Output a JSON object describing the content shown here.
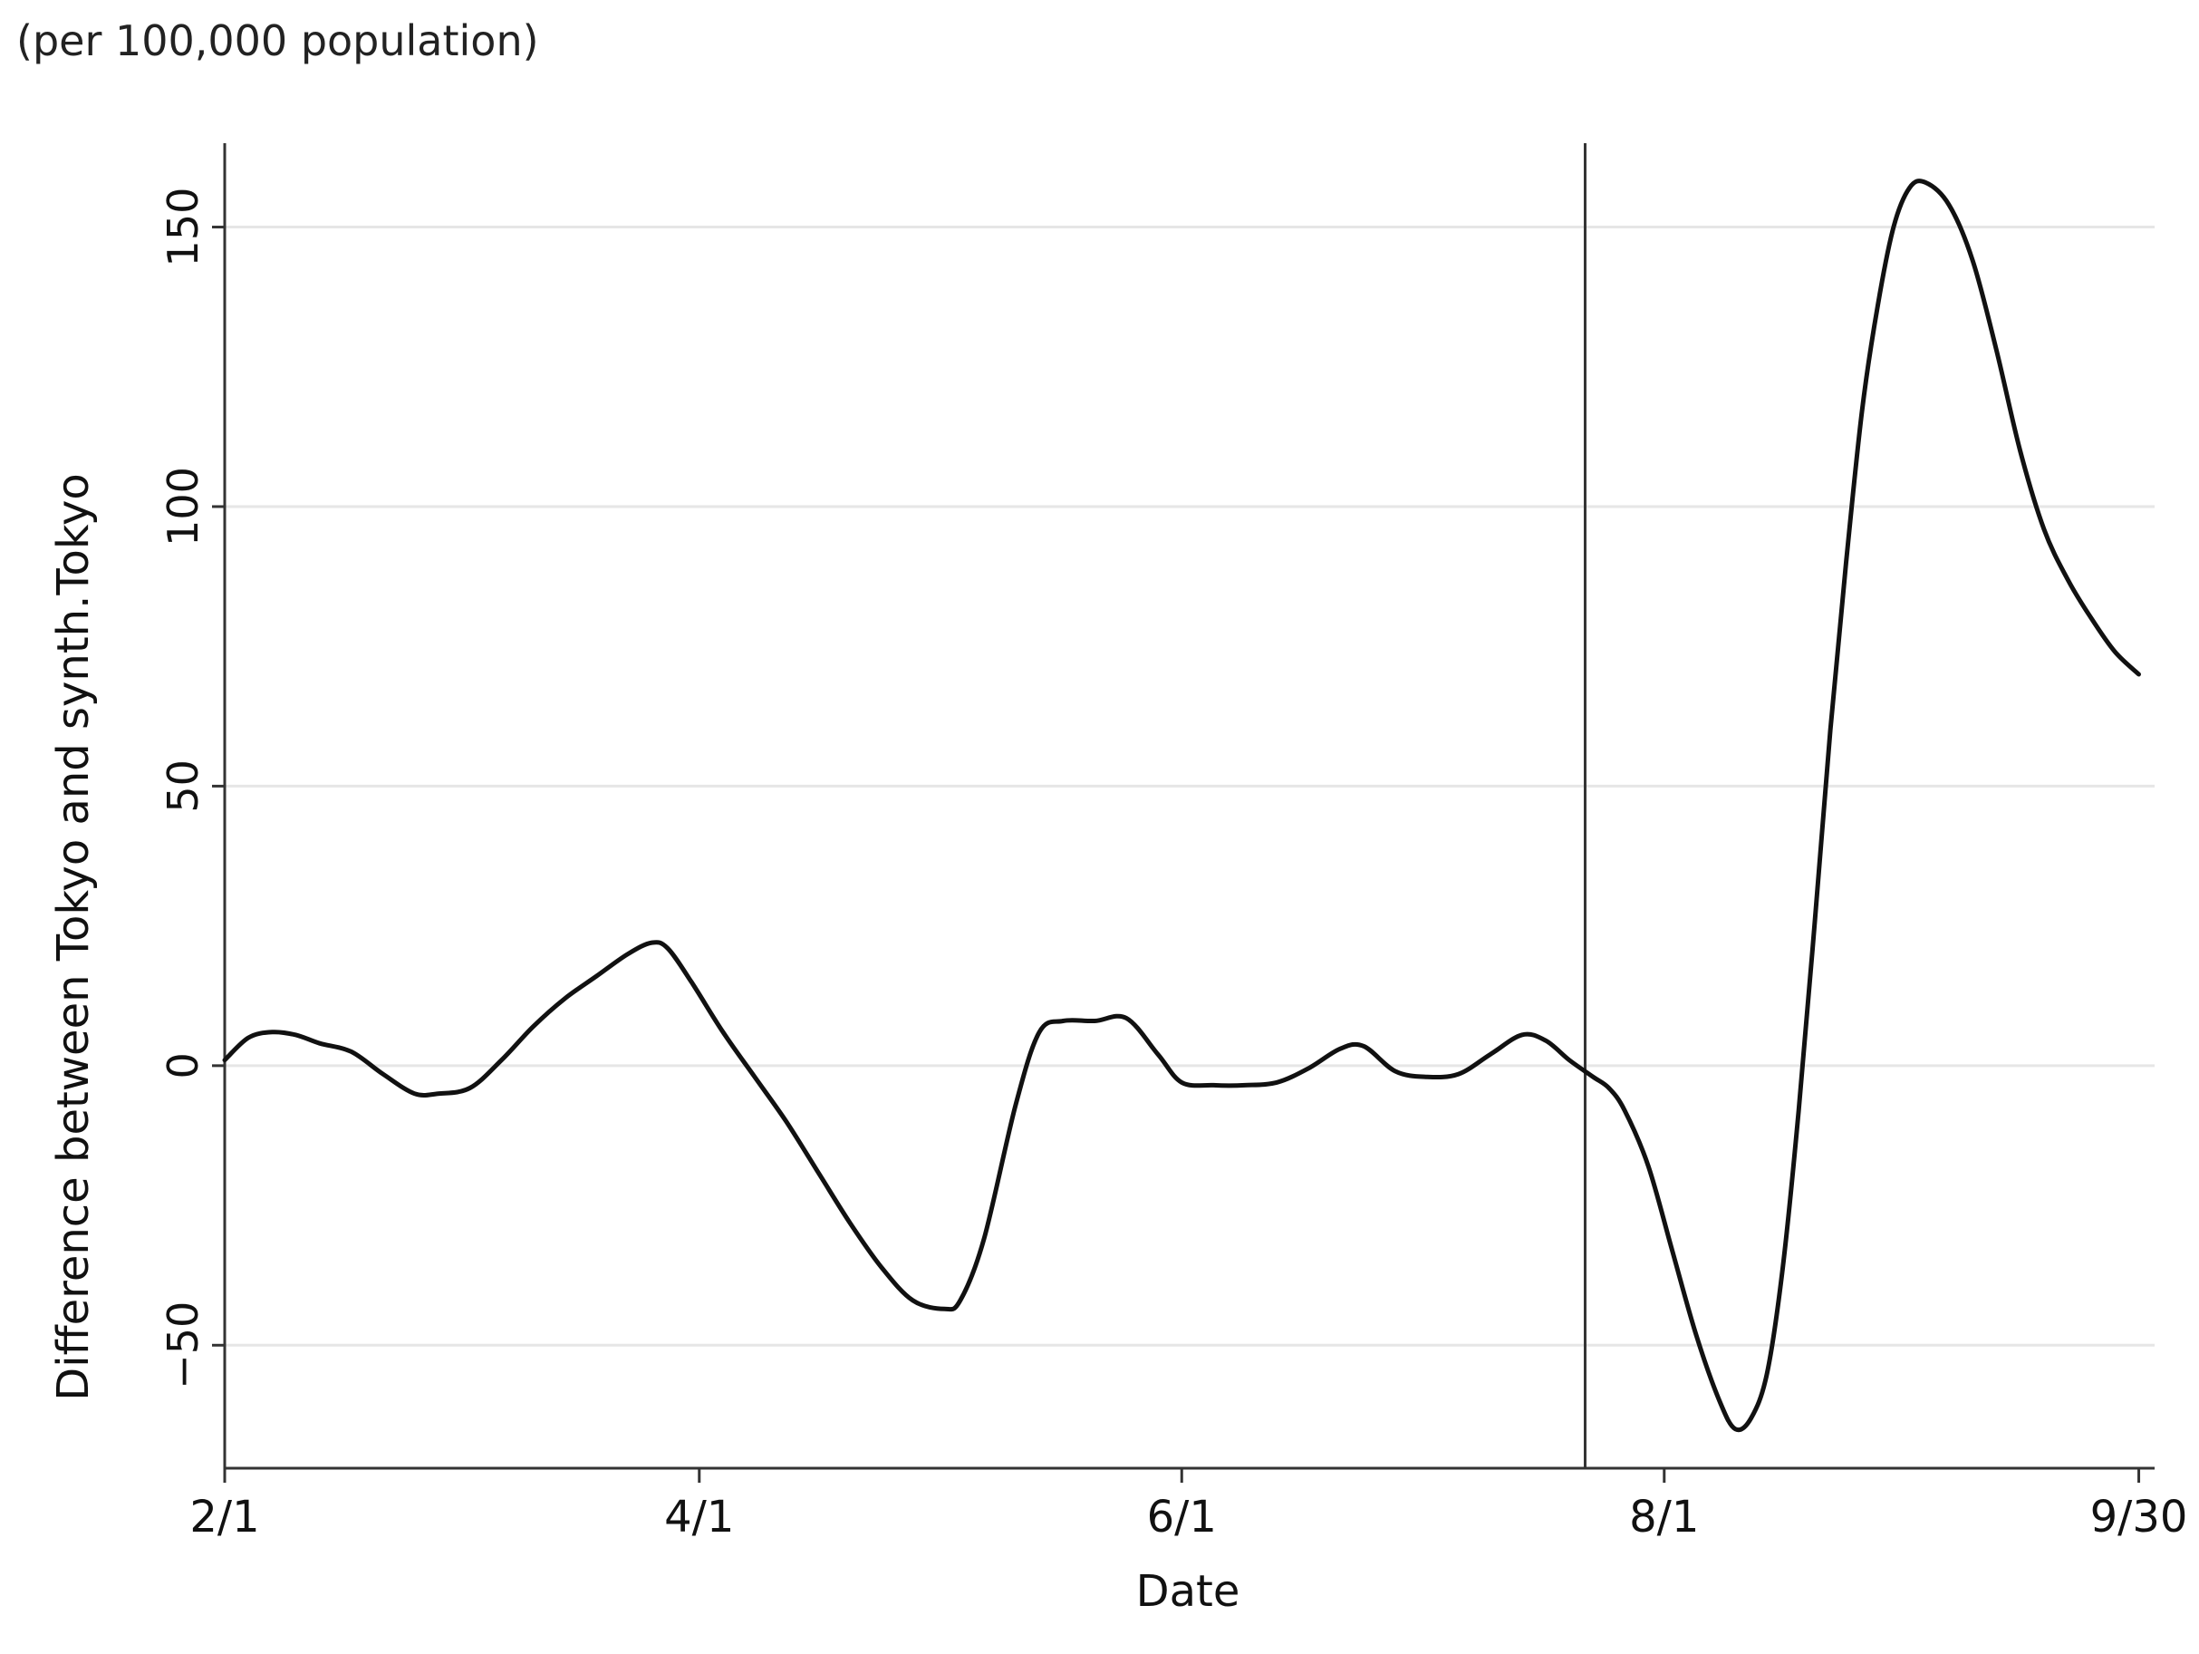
{
  "note": "(per 100,000 population)",
  "chart_data": {
    "type": "line",
    "xlabel": "Date",
    "ylabel": "Difference between Tokyo and synth.Tokyo",
    "xlim": [
      "2020-02-01",
      "2020-10-02"
    ],
    "ylim": [
      -72,
      165
    ],
    "x_ticks": [
      {
        "date": "2020-02-01",
        "label": "2/1"
      },
      {
        "date": "2020-04-01",
        "label": "4/1"
      },
      {
        "date": "2020-06-01",
        "label": "6/1"
      },
      {
        "date": "2020-08-01",
        "label": "8/1"
      },
      {
        "date": "2020-09-30",
        "label": "9/30"
      }
    ],
    "y_ticks": [
      -50,
      0,
      50,
      100,
      150
    ],
    "grid": "horizontal",
    "line_color": "#111111",
    "grid_color": "#e6e6e6",
    "vertical_marker": {
      "date": "2020-07-22"
    },
    "series": [
      {
        "points": [
          [
            "2020-02-01",
            1
          ],
          [
            "2020-02-04",
            5
          ],
          [
            "2020-02-07",
            6
          ],
          [
            "2020-02-10",
            5.5
          ],
          [
            "2020-02-13",
            4
          ],
          [
            "2020-02-17",
            2.5
          ],
          [
            "2020-02-21",
            -1.5
          ],
          [
            "2020-02-25",
            -5
          ],
          [
            "2020-02-28",
            -5
          ],
          [
            "2020-03-03",
            -4
          ],
          [
            "2020-03-07",
            1
          ],
          [
            "2020-03-11",
            7
          ],
          [
            "2020-03-15",
            12
          ],
          [
            "2020-03-19",
            16
          ],
          [
            "2020-03-23",
            20
          ],
          [
            "2020-03-26",
            22
          ],
          [
            "2020-03-28",
            21
          ],
          [
            "2020-03-31",
            15
          ],
          [
            "2020-04-04",
            6
          ],
          [
            "2020-04-08",
            -2
          ],
          [
            "2020-04-12",
            -10
          ],
          [
            "2020-04-16",
            -19
          ],
          [
            "2020-04-20",
            -28
          ],
          [
            "2020-04-24",
            -36
          ],
          [
            "2020-04-28",
            -42
          ],
          [
            "2020-05-02",
            -43.5
          ],
          [
            "2020-05-04",
            -42
          ],
          [
            "2020-05-07",
            -31
          ],
          [
            "2020-05-11",
            -7
          ],
          [
            "2020-05-14",
            6
          ],
          [
            "2020-05-17",
            8
          ],
          [
            "2020-05-21",
            8
          ],
          [
            "2020-05-25",
            8.5
          ],
          [
            "2020-05-29",
            2
          ],
          [
            "2020-06-01",
            -3
          ],
          [
            "2020-06-05",
            -3.5
          ],
          [
            "2020-06-09",
            -3.5
          ],
          [
            "2020-06-13",
            -3
          ],
          [
            "2020-06-17",
            -0.5
          ],
          [
            "2020-06-21",
            3
          ],
          [
            "2020-06-24",
            3.5
          ],
          [
            "2020-06-28",
            -1
          ],
          [
            "2020-07-02",
            -2
          ],
          [
            "2020-07-06",
            -1.5
          ],
          [
            "2020-07-10",
            2
          ],
          [
            "2020-07-14",
            5.5
          ],
          [
            "2020-07-17",
            4.5
          ],
          [
            "2020-07-20",
            1
          ],
          [
            "2020-07-23",
            -2
          ],
          [
            "2020-07-25",
            -4
          ],
          [
            "2020-07-27",
            -8
          ],
          [
            "2020-07-30",
            -18
          ],
          [
            "2020-08-02",
            -33
          ],
          [
            "2020-08-05",
            -48
          ],
          [
            "2020-08-08",
            -60
          ],
          [
            "2020-08-10",
            -65
          ],
          [
            "2020-08-12",
            -63
          ],
          [
            "2020-08-14",
            -55
          ],
          [
            "2020-08-16",
            -36
          ],
          [
            "2020-08-18",
            -8
          ],
          [
            "2020-08-20",
            25
          ],
          [
            "2020-08-22",
            60
          ],
          [
            "2020-08-24",
            90
          ],
          [
            "2020-08-26",
            117
          ],
          [
            "2020-08-28",
            136
          ],
          [
            "2020-08-30",
            150
          ],
          [
            "2020-09-01",
            157
          ],
          [
            "2020-09-03",
            158
          ],
          [
            "2020-09-06",
            154
          ],
          [
            "2020-09-09",
            144
          ],
          [
            "2020-09-12",
            128
          ],
          [
            "2020-09-15",
            110
          ],
          [
            "2020-09-18",
            96
          ],
          [
            "2020-09-21",
            87
          ],
          [
            "2020-09-24",
            80
          ],
          [
            "2020-09-27",
            74
          ],
          [
            "2020-09-30",
            70
          ]
        ]
      }
    ]
  }
}
